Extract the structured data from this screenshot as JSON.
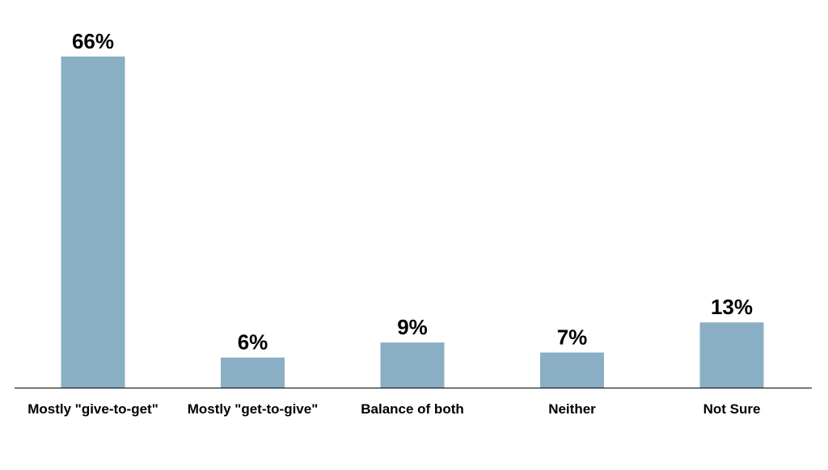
{
  "chart_data": {
    "type": "bar",
    "categories": [
      "Mostly \"give-to-get\"",
      "Mostly \"get-to-give\"",
      "Balance of both",
      "Neither",
      "Not Sure"
    ],
    "values": [
      66,
      6,
      9,
      7,
      13
    ],
    "data_labels": [
      "66%",
      "6%",
      "9%",
      "7%",
      "13%"
    ],
    "title": "",
    "xlabel": "",
    "ylabel": "",
    "ylim": [
      0,
      66
    ],
    "grid": false,
    "legend": "none",
    "colors": {
      "bar": "#8aafc4",
      "axis": "#000000",
      "text": "#000000"
    }
  }
}
